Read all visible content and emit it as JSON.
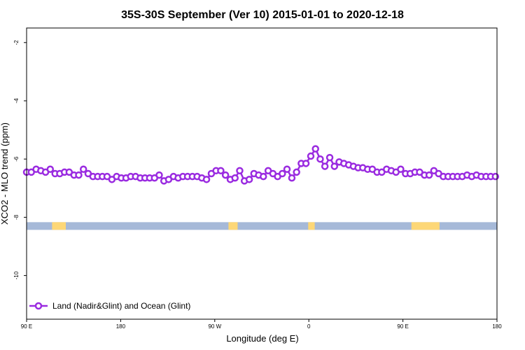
{
  "chart_data": {
    "type": "line",
    "title": "35S-30S September (Ver 10)   2015-01-01 to 2020-12-18",
    "xlabel": "Longitude (deg E)",
    "ylabel": "XCO2 - MLO trend (ppm)",
    "xlim": [
      90,
      450
    ],
    "ylim": [
      -11.5,
      -1.5
    ],
    "x_ticks": [
      {
        "value": 90,
        "label": "90 E"
      },
      {
        "value": 162,
        "label": "180"
      },
      {
        "value": 234,
        "label": "90 W"
      },
      {
        "value": 306,
        "label": "0"
      },
      {
        "value": 378,
        "label": "90 E"
      },
      {
        "value": 450,
        "label": "180"
      }
    ],
    "y_ticks": [
      {
        "value": -2,
        "label": "-2"
      },
      {
        "value": -4,
        "label": "-4"
      },
      {
        "value": -6,
        "label": "-6"
      },
      {
        "value": -8,
        "label": "-8"
      },
      {
        "value": -10,
        "label": "-10"
      }
    ],
    "grid": false,
    "legend_position": "bottom-left",
    "series": [
      {
        "name": "Land (Nadir&Glint) and Ocean (Glint)",
        "color": "#9a2be0",
        "x": [
          90,
          93.6,
          97.3,
          100.9,
          104.5,
          108.1,
          111.8,
          115.4,
          119,
          122.6,
          126.3,
          129.9,
          133.5,
          137.1,
          140.8,
          144.4,
          148,
          151.6,
          155.3,
          158.9,
          162.5,
          166.1,
          169.7,
          173.4,
          177,
          180.6,
          184.2,
          187.9,
          191.5,
          195.1,
          198.7,
          202.4,
          206,
          209.6,
          213.2,
          216.9,
          220.5,
          224.1,
          227.7,
          231.4,
          235,
          238.6,
          242.2,
          245.9,
          249.5,
          253.1,
          256.7,
          260.4,
          264,
          267.6,
          271.2,
          274.9,
          278.5,
          282.1,
          285.7,
          289.3,
          293,
          296.6,
          300.2,
          303.8,
          307.5,
          311.1,
          314.7,
          318.3,
          322,
          325.6,
          329.2,
          332.8,
          336.5,
          340.1,
          343.7,
          347.3,
          351,
          354.6,
          358.2,
          361.8,
          365.5,
          369.1,
          372.7,
          376.3,
          380,
          383.6,
          387.2,
          390.8,
          394.5,
          398.1,
          401.7,
          405.3,
          408.9,
          412.6,
          416.2,
          419.8,
          423.4,
          427.1,
          430.7,
          434.3,
          437.9,
          441.6,
          445.2,
          448.8
        ],
        "values": [
          -6.45,
          -6.45,
          -6.35,
          -6.4,
          -6.45,
          -6.35,
          -6.5,
          -6.5,
          -6.45,
          -6.45,
          -6.55,
          -6.55,
          -6.35,
          -6.5,
          -6.6,
          -6.6,
          -6.6,
          -6.6,
          -6.7,
          -6.6,
          -6.65,
          -6.65,
          -6.6,
          -6.6,
          -6.65,
          -6.65,
          -6.65,
          -6.65,
          -6.55,
          -6.75,
          -6.7,
          -6.6,
          -6.65,
          -6.6,
          -6.6,
          -6.6,
          -6.6,
          -6.65,
          -6.7,
          -6.5,
          -6.4,
          -6.4,
          -6.55,
          -6.7,
          -6.65,
          -6.4,
          -6.75,
          -6.7,
          -6.5,
          -6.55,
          -6.6,
          -6.4,
          -6.5,
          -6.6,
          -6.5,
          -6.35,
          -6.65,
          -6.45,
          -6.15,
          -6.15,
          -5.9,
          -5.65,
          -6.0,
          -6.25,
          -5.95,
          -6.25,
          -6.1,
          -6.15,
          -6.2,
          -6.25,
          -6.3,
          -6.3,
          -6.35,
          -6.35,
          -6.45,
          -6.45,
          -6.35,
          -6.4,
          -6.45,
          -6.35,
          -6.5,
          -6.5,
          -6.45,
          -6.45,
          -6.55,
          -6.55,
          -6.4,
          -6.5,
          -6.6,
          -6.6,
          -6.6,
          -6.6,
          -6.6,
          -6.55,
          -6.6,
          -6.55,
          -6.6,
          -6.6,
          -6.6,
          -6.6
        ]
      }
    ],
    "land_ocean_bar": {
      "y": -8.3,
      "ocean_color": "#a6b9d8",
      "land_color": "#fdd777",
      "land_segments": [
        [
          109.5,
          120
        ],
        [
          244.5,
          251.5
        ],
        [
          305.5,
          310.5
        ],
        [
          384.5,
          406
        ]
      ]
    }
  }
}
